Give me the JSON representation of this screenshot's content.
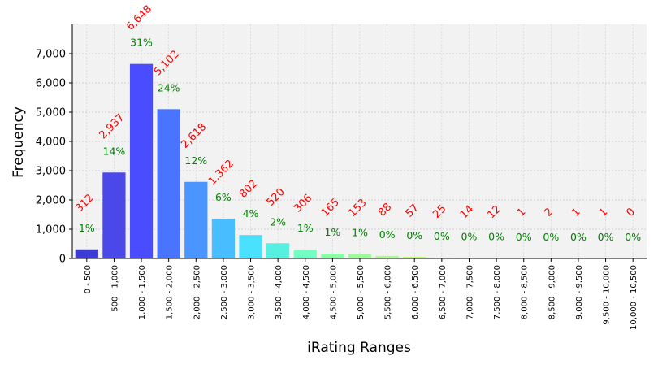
{
  "chart_data": {
    "type": "bar",
    "xlabel": "iRating Ranges",
    "ylabel": "Frequency",
    "ylim": [
      0,
      8000
    ],
    "yticks": [
      "0",
      "1,000",
      "2,000",
      "3,000",
      "4,000",
      "5,000",
      "6,000",
      "7,000"
    ],
    "ytick_values": [
      0,
      1000,
      2000,
      3000,
      4000,
      5000,
      6000,
      7000
    ],
    "grid": true,
    "categories": [
      "0 - 500",
      "500 - 1,000",
      "1,000 - 1,500",
      "1,500 - 2,000",
      "2,000 - 2,500",
      "2,500 - 3,000",
      "3,000 - 3,500",
      "3,500 - 4,000",
      "4,000 - 4,500",
      "4,500 - 5,000",
      "5,000 - 5,500",
      "5,500 - 6,000",
      "6,000 - 6,500",
      "6,500 - 7,000",
      "7,000 - 7,500",
      "7,500 - 8,000",
      "8,000 - 8,500",
      "8,500 - 9,000",
      "9,000 - 9,500",
      "9,500 - 10,000",
      "10,000 - 10,500"
    ],
    "values": [
      312,
      2937,
      6648,
      5102,
      2618,
      1362,
      802,
      520,
      306,
      165,
      153,
      88,
      57,
      25,
      14,
      12,
      1,
      2,
      1,
      1,
      0
    ],
    "count_labels": [
      "312",
      "2,937",
      "6,648",
      "5,102",
      "2,618",
      "1,362",
      "802",
      "520",
      "306",
      "165",
      "153",
      "88",
      "57",
      "25",
      "14",
      "12",
      "1",
      "2",
      "1",
      "1",
      "0"
    ],
    "percent_labels": [
      "1%",
      "14%",
      "31%",
      "24%",
      "12%",
      "6%",
      "4%",
      "2%",
      "1%",
      "1%",
      "1%",
      "0%",
      "0%",
      "0%",
      "0%",
      "0%",
      "0%",
      "0%",
      "0%",
      "0%",
      "0%"
    ],
    "bar_colors": [
      "#3c3bd6",
      "#4a48e8",
      "#4a4cff",
      "#4a73ff",
      "#4a95ff",
      "#48bdff",
      "#4ae1ff",
      "#55f0e0",
      "#72ffc2",
      "#88ffa6",
      "#99ff94",
      "#a8ff85",
      "#bdff70",
      "#d2ff5c",
      "#e4ff48",
      "#f2f03a",
      "#ffd52e",
      "#ffb020",
      "#ff8a14",
      "#ff5e0a",
      "#ff2a00"
    ],
    "count_label_color": "#ff0000",
    "percent_label_color": "#008000",
    "plot_background": "#f2f2f2"
  }
}
